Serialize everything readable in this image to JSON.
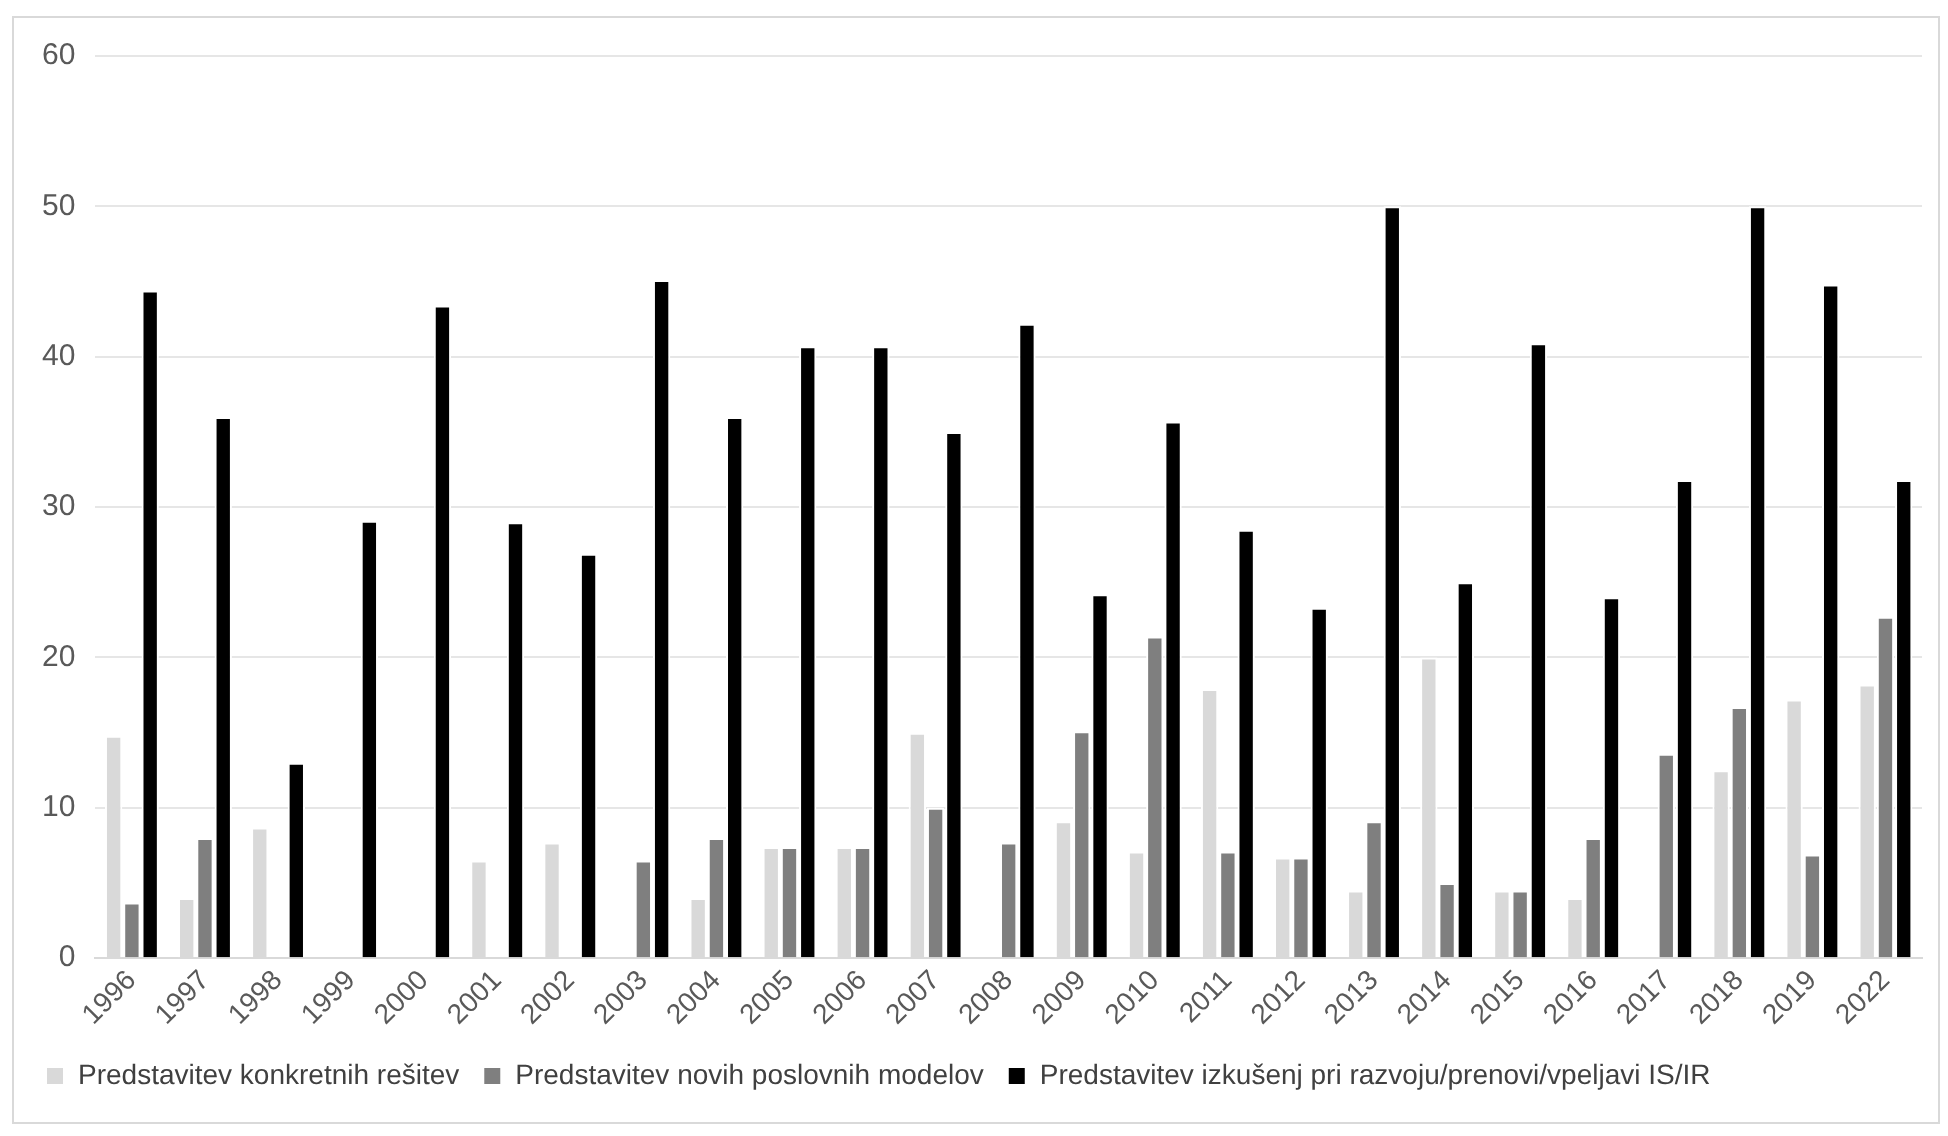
{
  "chart_data": {
    "type": "bar",
    "categories": [
      "1996",
      "1997",
      "1998",
      "1999",
      "2000",
      "2001",
      "2002",
      "2003",
      "2004",
      "2005",
      "2006",
      "2007",
      "2008",
      "2009",
      "2010",
      "2011",
      "2012",
      "2013",
      "2014",
      "2015",
      "2016",
      "2017",
      "2018",
      "2019",
      "2022"
    ],
    "series": [
      {
        "name": "Predstavitev konkretnih rešitev",
        "color": "#d9d9d9",
        "values": [
          14.8,
          4.0,
          8.7,
          null,
          null,
          6.5,
          7.7,
          null,
          4.0,
          7.4,
          7.4,
          15.0,
          null,
          9.1,
          7.1,
          17.9,
          6.7,
          4.5,
          20.0,
          4.5,
          4.0,
          null,
          12.5,
          17.2,
          18.2
        ]
      },
      {
        "name": "Predstavitev novih poslovnih modelov",
        "color": "#7f7f7f",
        "values": [
          3.7,
          8.0,
          null,
          null,
          null,
          null,
          null,
          6.5,
          8.0,
          7.4,
          7.4,
          10.0,
          7.7,
          15.1,
          21.4,
          7.1,
          6.7,
          9.1,
          5.0,
          4.5,
          8.0,
          13.6,
          16.7,
          6.9,
          22.7
        ]
      },
      {
        "name": "Predstavitev izkušenj pri razvoju/prenovi/vpeljavi IS/IR",
        "color": "#000000",
        "values": [
          44.4,
          36.0,
          13.0,
          29.1,
          43.4,
          29.0,
          26.9,
          45.1,
          36.0,
          40.7,
          40.7,
          35.0,
          42.2,
          24.2,
          35.7,
          28.5,
          23.3,
          50.0,
          25.0,
          40.9,
          24.0,
          31.8,
          50.0,
          44.8,
          31.8
        ]
      }
    ],
    "ylim": [
      0,
      60
    ],
    "yticks": [
      0,
      10,
      20,
      30,
      40,
      50,
      60
    ],
    "grid": "y",
    "legend": "bottom"
  }
}
